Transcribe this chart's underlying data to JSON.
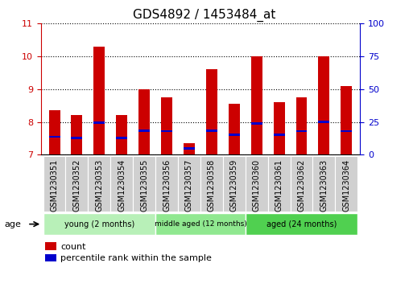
{
  "title": "GDS4892 / 1453484_at",
  "samples": [
    "GSM1230351",
    "GSM1230352",
    "GSM1230353",
    "GSM1230354",
    "GSM1230355",
    "GSM1230356",
    "GSM1230357",
    "GSM1230358",
    "GSM1230359",
    "GSM1230360",
    "GSM1230361",
    "GSM1230362",
    "GSM1230363",
    "GSM1230364"
  ],
  "count_values": [
    8.35,
    8.2,
    10.3,
    8.2,
    9.0,
    8.75,
    7.35,
    9.6,
    8.55,
    10.0,
    8.6,
    8.75,
    10.0,
    9.1
  ],
  "percentile_values": [
    7.55,
    7.52,
    7.97,
    7.52,
    7.73,
    7.72,
    7.2,
    7.73,
    7.62,
    7.95,
    7.62,
    7.72,
    8.0,
    7.72
  ],
  "ylim_left": [
    7,
    11
  ],
  "ylim_right": [
    0,
    100
  ],
  "yticks_left": [
    7,
    8,
    9,
    10,
    11
  ],
  "yticks_right": [
    0,
    25,
    50,
    75,
    100
  ],
  "bar_color": "#cc0000",
  "percentile_color": "#0000cc",
  "bar_width": 0.5,
  "groups": [
    {
      "label": "young (2 months)",
      "indices": [
        0,
        1,
        2,
        3,
        4
      ]
    },
    {
      "label": "middle aged (12 months)",
      "indices": [
        5,
        6,
        7,
        8
      ]
    },
    {
      "label": "aged (24 months)",
      "indices": [
        9,
        10,
        11,
        12,
        13
      ]
    }
  ],
  "group_bg_colors": [
    "#b8f0b8",
    "#90e890",
    "#50d050"
  ],
  "xlabel_group": "age",
  "legend_count_label": "count",
  "legend_percentile_label": "percentile rank within the sample",
  "title_fontsize": 11,
  "tick_fontsize": 7,
  "axis_color_left": "#cc0000",
  "axis_color_right": "#0000cc",
  "grid_color": "black",
  "bg_color": "white",
  "ticklabel_bg": "#d0d0d0"
}
